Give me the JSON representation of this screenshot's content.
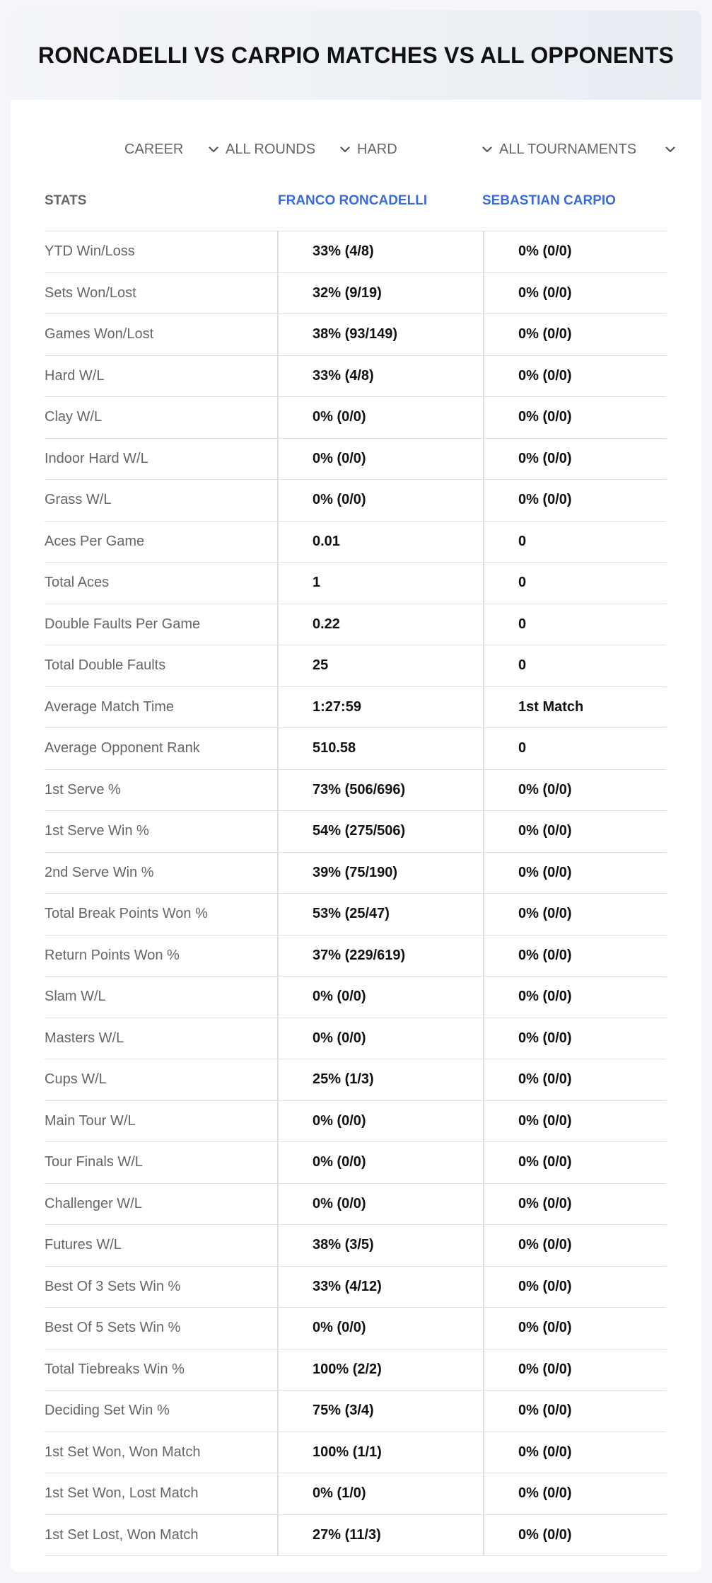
{
  "title": "RONCADELLI VS CARPIO MATCHES VS ALL OPPONENTS",
  "filters": {
    "period": "CAREER",
    "round": "ALL ROUNDS",
    "surface": "HARD",
    "tournament": "ALL TOURNAMENTS"
  },
  "headers": {
    "stats": "STATS",
    "player1": "FRANCO RONCADELLI",
    "player2": "SEBASTIAN CARPIO"
  },
  "rows": [
    {
      "label": "YTD Win/Loss",
      "p1": "33% (4/8)",
      "p2": "0% (0/0)"
    },
    {
      "label": "Sets Won/Lost",
      "p1": "32% (9/19)",
      "p2": "0% (0/0)"
    },
    {
      "label": "Games Won/Lost",
      "p1": "38% (93/149)",
      "p2": "0% (0/0)"
    },
    {
      "label": "Hard W/L",
      "p1": "33% (4/8)",
      "p2": "0% (0/0)"
    },
    {
      "label": "Clay W/L",
      "p1": "0% (0/0)",
      "p2": "0% (0/0)"
    },
    {
      "label": "Indoor Hard W/L",
      "p1": "0% (0/0)",
      "p2": "0% (0/0)"
    },
    {
      "label": "Grass W/L",
      "p1": "0% (0/0)",
      "p2": "0% (0/0)"
    },
    {
      "label": "Aces Per Game",
      "p1": "0.01",
      "p2": "0"
    },
    {
      "label": "Total Aces",
      "p1": "1",
      "p2": "0"
    },
    {
      "label": "Double Faults Per Game",
      "p1": "0.22",
      "p2": "0"
    },
    {
      "label": "Total Double Faults",
      "p1": "25",
      "p2": "0"
    },
    {
      "label": "Average Match Time",
      "p1": "1:27:59",
      "p2": "1st Match"
    },
    {
      "label": "Average Opponent Rank",
      "p1": "510.58",
      "p2": "0"
    },
    {
      "label": "1st Serve %",
      "p1": "73% (506/696)",
      "p2": "0% (0/0)"
    },
    {
      "label": "1st Serve Win %",
      "p1": "54% (275/506)",
      "p2": "0% (0/0)"
    },
    {
      "label": "2nd Serve Win %",
      "p1": "39% (75/190)",
      "p2": "0% (0/0)"
    },
    {
      "label": "Total Break Points Won %",
      "p1": "53% (25/47)",
      "p2": "0% (0/0)"
    },
    {
      "label": "Return Points Won %",
      "p1": "37% (229/619)",
      "p2": "0% (0/0)"
    },
    {
      "label": "Slam W/L",
      "p1": "0% (0/0)",
      "p2": "0% (0/0)"
    },
    {
      "label": "Masters W/L",
      "p1": "0% (0/0)",
      "p2": "0% (0/0)"
    },
    {
      "label": "Cups W/L",
      "p1": "25% (1/3)",
      "p2": "0% (0/0)"
    },
    {
      "label": "Main Tour W/L",
      "p1": "0% (0/0)",
      "p2": "0% (0/0)"
    },
    {
      "label": "Tour Finals W/L",
      "p1": "0% (0/0)",
      "p2": "0% (0/0)"
    },
    {
      "label": "Challenger W/L",
      "p1": "0% (0/0)",
      "p2": "0% (0/0)"
    },
    {
      "label": "Futures W/L",
      "p1": "38% (3/5)",
      "p2": "0% (0/0)"
    },
    {
      "label": "Best Of 3 Sets Win %",
      "p1": "33% (4/12)",
      "p2": "0% (0/0)"
    },
    {
      "label": "Best Of 5 Sets Win %",
      "p1": "0% (0/0)",
      "p2": "0% (0/0)"
    },
    {
      "label": "Total Tiebreaks Win %",
      "p1": "100% (2/2)",
      "p2": "0% (0/0)"
    },
    {
      "label": "Deciding Set Win %",
      "p1": "75% (3/4)",
      "p2": "0% (0/0)"
    },
    {
      "label": "1st Set Won, Won Match",
      "p1": "100% (1/1)",
      "p2": "0% (0/0)"
    },
    {
      "label": "1st Set Won, Lost Match",
      "p1": "0% (1/0)",
      "p2": "0% (0/0)"
    },
    {
      "label": "1st Set Lost, Won Match",
      "p1": "27% (11/3)",
      "p2": "0% (0/0)"
    }
  ]
}
